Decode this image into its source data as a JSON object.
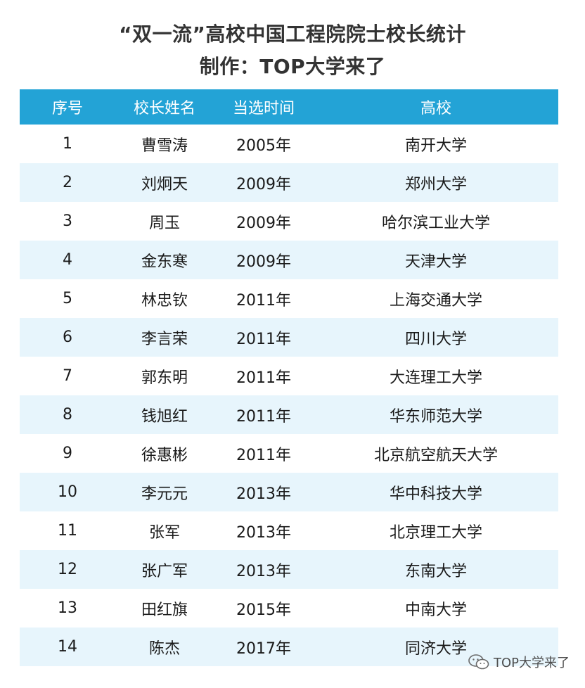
{
  "title": {
    "line1": "“双一流”高校中国工程院院士校长统计",
    "line2": "制作：TOP大学来了"
  },
  "table": {
    "headers": [
      "序号",
      "校长姓名",
      "当选时间",
      "高校"
    ],
    "rows": [
      {
        "no": "1",
        "name": "曹雪涛",
        "year": "2005年",
        "university": "南开大学"
      },
      {
        "no": "2",
        "name": "刘炯天",
        "year": "2009年",
        "university": "郑州大学"
      },
      {
        "no": "3",
        "name": "周玉",
        "year": "2009年",
        "university": "哈尔滨工业大学"
      },
      {
        "no": "4",
        "name": "金东寒",
        "year": "2009年",
        "university": "天津大学"
      },
      {
        "no": "5",
        "name": "林忠钦",
        "year": "2011年",
        "university": "上海交通大学"
      },
      {
        "no": "6",
        "name": "李言荣",
        "year": "2011年",
        "university": "四川大学"
      },
      {
        "no": "7",
        "name": "郭东明",
        "year": "2011年",
        "university": "大连理工大学"
      },
      {
        "no": "8",
        "name": "钱旭红",
        "year": "2011年",
        "university": "华东师范大学"
      },
      {
        "no": "9",
        "name": "徐惠彬",
        "year": "2011年",
        "university": "北京航空航天大学"
      },
      {
        "no": "10",
        "name": "李元元",
        "year": "2013年",
        "university": "华中科技大学"
      },
      {
        "no": "11",
        "name": "张军",
        "year": "2013年",
        "university": "北京理工大学"
      },
      {
        "no": "12",
        "name": "张广军",
        "year": "2013年",
        "university": "东南大学"
      },
      {
        "no": "13",
        "name": "田红旗",
        "year": "2015年",
        "university": "中南大学"
      },
      {
        "no": "14",
        "name": "陈杰",
        "year": "2017年",
        "university": "同济大学"
      }
    ]
  },
  "watermark": {
    "icon": "wechat-icon",
    "text": "TOP大学来了"
  },
  "colors": {
    "header_bg": "#23a3d6",
    "stripe_bg": "#e7f5fc"
  }
}
